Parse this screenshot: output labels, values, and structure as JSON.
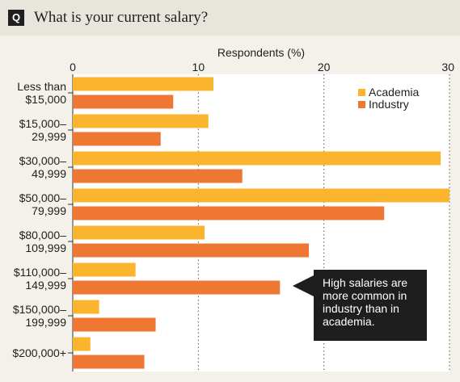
{
  "header": {
    "badge": "Q",
    "question": "What is your current salary?"
  },
  "colors": {
    "academia": "#fbb42e",
    "industry": "#ee7733",
    "plot_bg": "#ffffff",
    "gridline": "#555555",
    "callout_bg": "#1e1e1e",
    "callout_text": "#ffffff"
  },
  "chart_data": {
    "type": "bar",
    "orientation": "horizontal",
    "title": "",
    "xlabel": "Respondents (%)",
    "ylabel": "",
    "xlim": [
      0,
      30
    ],
    "xticks": [
      "0",
      "10",
      "20",
      "30"
    ],
    "grid": true,
    "legend_position": "top-right",
    "categories": [
      [
        "Less than",
        "$15,000"
      ],
      [
        "$15,000–",
        "29,999"
      ],
      [
        "$30,000–",
        "49,999"
      ],
      [
        "$50,000–",
        "79,999"
      ],
      [
        "$80,000–",
        "109,999"
      ],
      [
        "$110,000–",
        "149,999"
      ],
      [
        "$150,000–",
        "199,999"
      ],
      [
        "$200,000+"
      ]
    ],
    "series": [
      {
        "name": "Academia",
        "values": [
          11.2,
          10.8,
          29.3,
          30.0,
          10.5,
          5.0,
          2.1,
          1.4
        ]
      },
      {
        "name": "Industry",
        "values": [
          8.0,
          7.0,
          13.5,
          24.8,
          18.8,
          16.5,
          6.6,
          5.7
        ]
      }
    ],
    "annotation": [
      "High salaries are",
      "more common in",
      "industry than in",
      "academia."
    ]
  }
}
